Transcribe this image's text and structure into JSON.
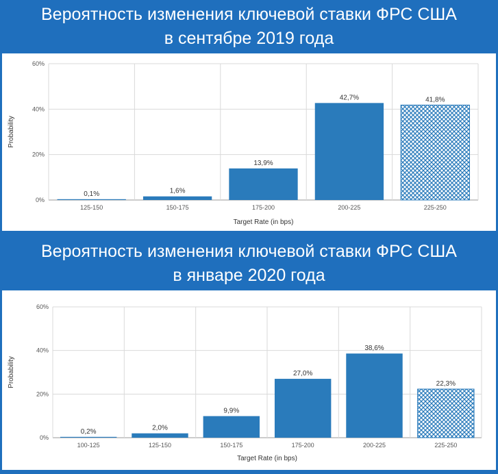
{
  "banners": [
    {
      "line1": "Вероятность изменения ключевой ставки ФРС США",
      "line2": "в сентябре 2019 года"
    },
    {
      "line1": "Вероятность изменения ключевой ставки ФРС США",
      "line2": "в январе 2020 года"
    }
  ],
  "colors": {
    "background": "#1f6fbd",
    "bar": "#2a7bbb",
    "grid": "#d9d9d9"
  },
  "chart_data": [
    {
      "type": "bar",
      "title": "",
      "xlabel": "Target Rate (in bps)",
      "ylabel": "Probability",
      "ylim": [
        0,
        60
      ],
      "yticks": [
        "0%",
        "20%",
        "40%",
        "60%"
      ],
      "categories": [
        "125-150",
        "150-175",
        "175-200",
        "200-225",
        "225-250"
      ],
      "values": [
        0.1,
        1.6,
        13.9,
        42.7,
        41.8
      ],
      "value_labels": [
        "0,1%",
        "1,6%",
        "13,9%",
        "42,7%",
        "41,8%"
      ],
      "hatched": [
        false,
        false,
        false,
        false,
        true
      ],
      "grid": true
    },
    {
      "type": "bar",
      "title": "",
      "xlabel": "Target Rate (in bps)",
      "ylabel": "Probability",
      "ylim": [
        0,
        60
      ],
      "yticks": [
        "0%",
        "20%",
        "40%",
        "60%"
      ],
      "categories": [
        "100-125",
        "125-150",
        "150-175",
        "175-200",
        "200-225",
        "225-250"
      ],
      "values": [
        0.2,
        2.0,
        9.9,
        27.0,
        38.6,
        22.3
      ],
      "value_labels": [
        "0,2%",
        "2,0%",
        "9,9%",
        "27,0%",
        "38,6%",
        "22,3%"
      ],
      "hatched": [
        false,
        false,
        false,
        false,
        false,
        true
      ],
      "grid": true
    }
  ]
}
